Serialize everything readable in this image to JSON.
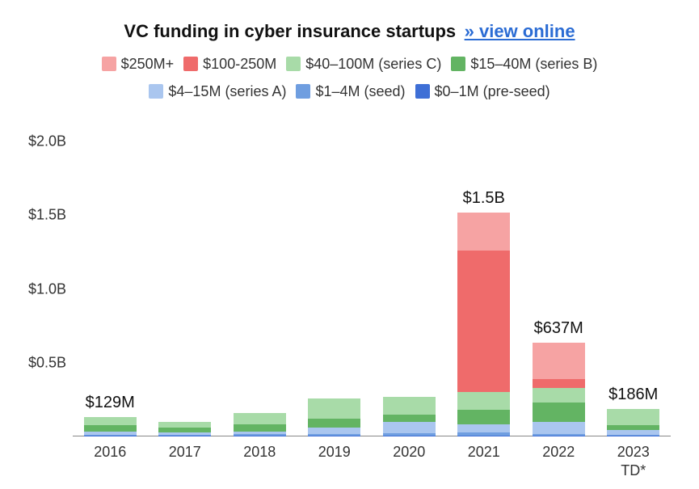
{
  "chart": {
    "type": "stacked-bar",
    "title": "VC funding in cyber insurance startups",
    "link_text": "» view online",
    "background_color": "#ffffff",
    "text_color": "#222222",
    "link_color": "#2b6cd4",
    "title_fontsize": 22,
    "legend_fontsize": 18,
    "axis_fontsize": 18,
    "bar_label_fontsize": 20,
    "bar_width_ratio": 0.7,
    "ylim": [
      0,
      2.0
    ],
    "y_unit": "B",
    "yticks": [
      {
        "v": 0.5,
        "label": "$0.5B"
      },
      {
        "v": 1.0,
        "label": "$1.0B"
      },
      {
        "v": 1.5,
        "label": "$1.5B"
      },
      {
        "v": 2.0,
        "label": "$2.0B"
      }
    ],
    "series": [
      {
        "key": "s6",
        "label": "$250M+",
        "color": "#f6a3a3"
      },
      {
        "key": "s5",
        "label": "$100-250M",
        "color": "#ef6b6b"
      },
      {
        "key": "s4",
        "label": "$40–100M (series C)",
        "color": "#a8dba8"
      },
      {
        "key": "s3",
        "label": "$15–40M (series B)",
        "color": "#63b463"
      },
      {
        "key": "s2",
        "label": "$4–15M (series A)",
        "color": "#aac6ef"
      },
      {
        "key": "s1",
        "label": "$1–4M (seed)",
        "color": "#6f9ee0"
      },
      {
        "key": "s0",
        "label": "$0–1M (pre-seed)",
        "color": "#3e6fd6"
      }
    ],
    "stack_order": [
      "s0",
      "s1",
      "s2",
      "s3",
      "s4",
      "s5",
      "s6"
    ],
    "categories": [
      {
        "label": "2016",
        "total_label": "$129M",
        "values": {
          "s0": 0.003,
          "s1": 0.01,
          "s2": 0.02,
          "s3": 0.046,
          "s4": 0.05,
          "s5": 0,
          "s6": 0
        }
      },
      {
        "label": "2017",
        "total_label": "",
        "values": {
          "s0": 0.003,
          "s1": 0.008,
          "s2": 0.016,
          "s3": 0.033,
          "s4": 0.04,
          "s5": 0,
          "s6": 0
        }
      },
      {
        "label": "2018",
        "total_label": "",
        "values": {
          "s0": 0.005,
          "s1": 0.01,
          "s2": 0.018,
          "s3": 0.047,
          "s4": 0.08,
          "s5": 0,
          "s6": 0
        }
      },
      {
        "label": "2019",
        "total_label": "",
        "values": {
          "s0": 0.004,
          "s1": 0.012,
          "s2": 0.044,
          "s3": 0.06,
          "s4": 0.14,
          "s5": 0,
          "s6": 0
        }
      },
      {
        "label": "2020",
        "total_label": "",
        "values": {
          "s0": 0.005,
          "s1": 0.015,
          "s2": 0.08,
          "s3": 0.05,
          "s4": 0.12,
          "s5": 0,
          "s6": 0
        }
      },
      {
        "label": "2021",
        "total_label": "$1.5B",
        "values": {
          "s0": 0.006,
          "s1": 0.019,
          "s2": 0.055,
          "s3": 0.1,
          "s4": 0.12,
          "s5": 0.96,
          "s6": 0.26
        }
      },
      {
        "label": "2022",
        "total_label": "$637M",
        "values": {
          "s0": 0.005,
          "s1": 0.012,
          "s2": 0.083,
          "s3": 0.13,
          "s4": 0.1,
          "s5": 0.057,
          "s6": 0.25
        }
      },
      {
        "label": "2023\nTD*",
        "total_label": "$186M",
        "values": {
          "s0": 0.003,
          "s1": 0.01,
          "s2": 0.03,
          "s3": 0.035,
          "s4": 0.108,
          "s5": 0,
          "s6": 0
        }
      }
    ]
  }
}
